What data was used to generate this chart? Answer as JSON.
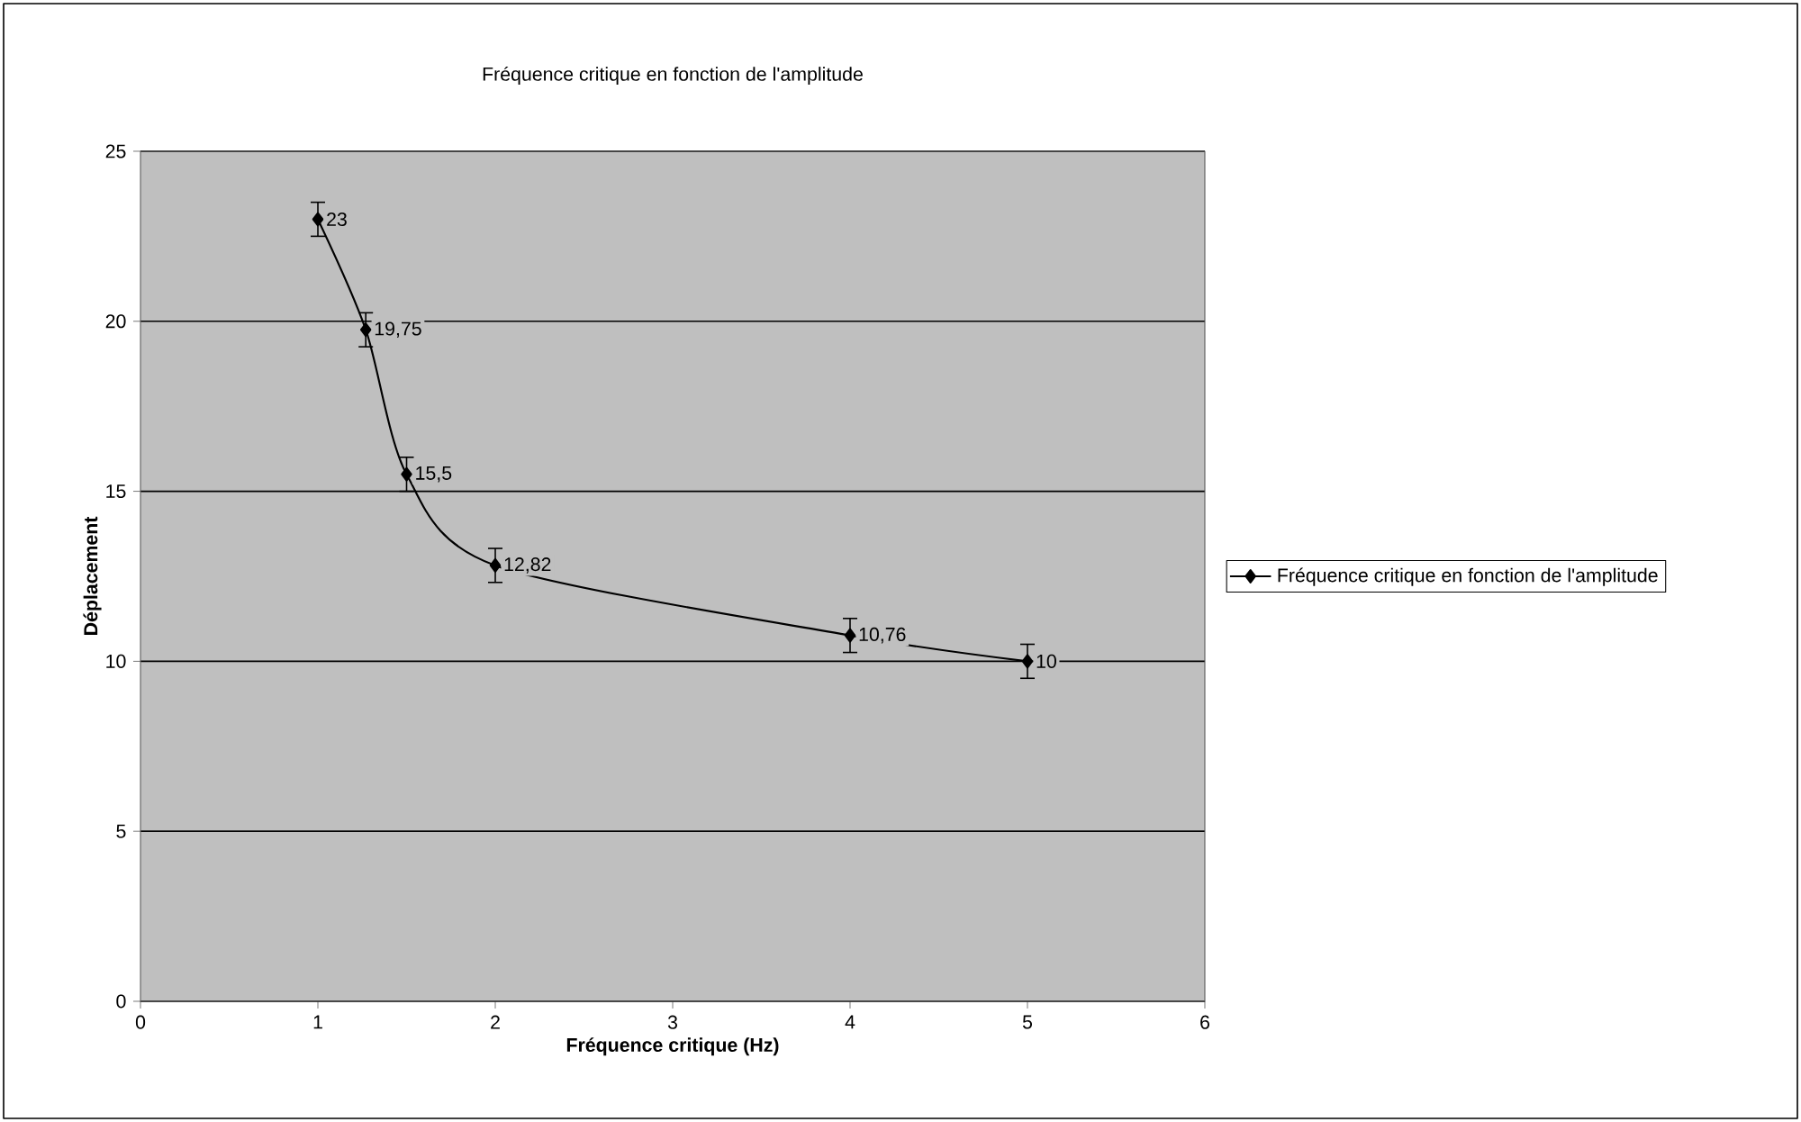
{
  "chart_data": {
    "type": "line",
    "title": "Fréquence critique en fonction de l'amplitude",
    "xlabel": "Fréquence critique (Hz)",
    "ylabel": "Déplacement",
    "x": [
      1,
      1.27,
      1.5,
      2,
      4,
      5
    ],
    "series": [
      {
        "name": "Fréquence critique en fonction de l'amplitude",
        "color": "#000000",
        "values": [
          23,
          19.75,
          15.5,
          12.82,
          10.76,
          10
        ],
        "errors": [
          0.5,
          0.5,
          0.5,
          0.5,
          0.5,
          0.5
        ],
        "value_labels": [
          "23",
          "19,75",
          "15,5",
          "12,82",
          "10,76",
          "10"
        ]
      }
    ],
    "xlim": [
      0,
      6
    ],
    "ylim": [
      0,
      25
    ],
    "xticks": [
      0,
      1,
      2,
      3,
      4,
      5,
      6
    ],
    "yticks": [
      0,
      5,
      10,
      15,
      20,
      25
    ],
    "grid": "y",
    "legend": "right",
    "marker": "diamond",
    "line_style": "solid"
  }
}
